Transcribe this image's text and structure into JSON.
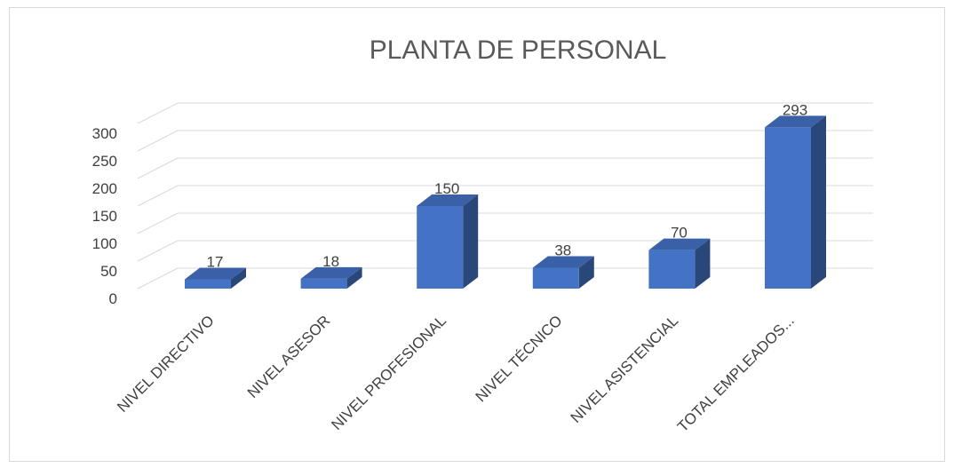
{
  "chart_data": {
    "type": "bar3d",
    "title": "PLANTA DE PERSONAL",
    "categories": [
      "NIVEL DIRECTIVO",
      "NIVEL ASESOR",
      "NIVEL PROFESIONAL",
      "NIVEL TÉCNICO",
      "NIVEL ASISTENCIAL",
      "TOTAL EMPLEADOS..."
    ],
    "values": [
      17,
      18,
      150,
      38,
      70,
      293
    ],
    "color": "#4472c4",
    "ylim": [
      0,
      300
    ],
    "yticks": [
      0,
      50,
      100,
      150,
      200,
      250,
      300
    ],
    "grid": true
  }
}
